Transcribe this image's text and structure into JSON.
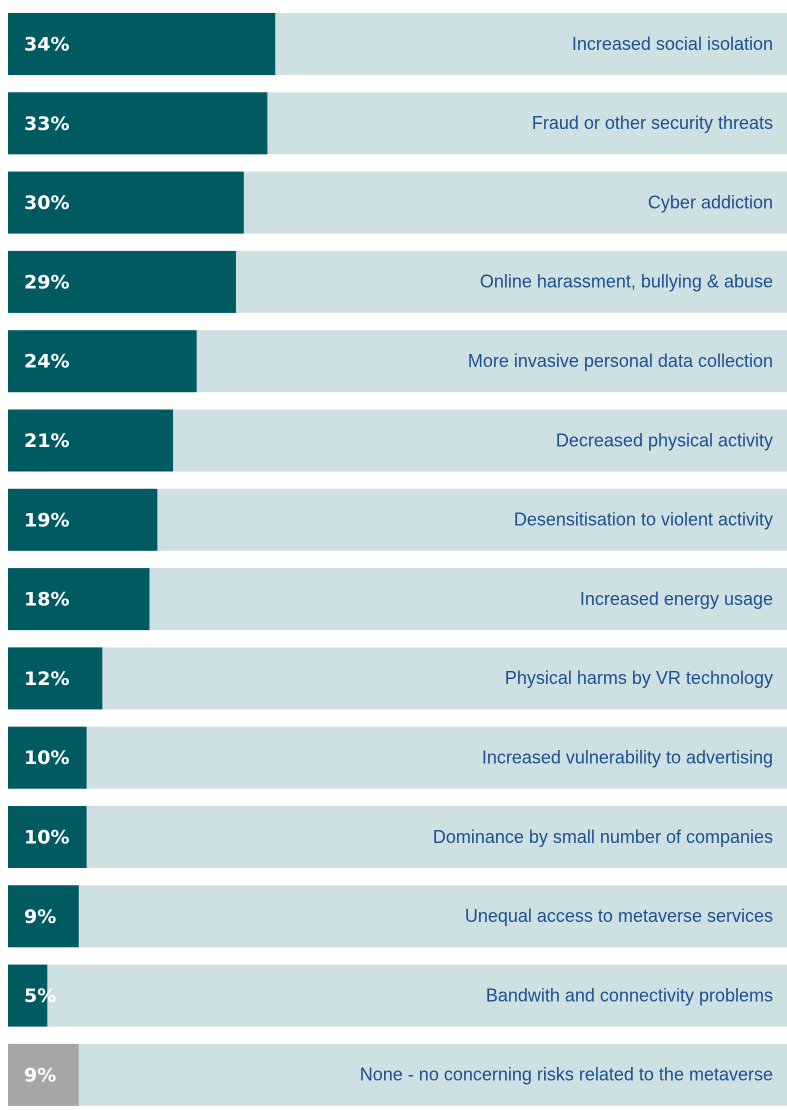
{
  "chart_data": {
    "type": "bar",
    "orientation": "horizontal",
    "categories": [
      "Increased social isolation",
      "Fraud or other security threats",
      "Cyber addiction",
      "Online harassment, bullying & abuse",
      "More invasive personal data collection",
      "Decreased physical activity",
      "Desensitisation to violent activity",
      "Increased energy usage",
      "Physical harms by VR technology",
      "Increased vulnerability to advertising",
      "Dominance by small number of companies",
      "Unequal access to metaverse services",
      "Bandwith and connectivity problems",
      "None - no concerning risks related to the metaverse"
    ],
    "values": [
      34,
      33,
      30,
      29,
      24,
      21,
      19,
      18,
      12,
      10,
      10,
      9,
      5,
      9
    ],
    "value_labels": [
      "34%",
      "33%",
      "30%",
      "29%",
      "24%",
      "21%",
      "19%",
      "18%",
      "12%",
      "10%",
      "10%",
      "9%",
      "5%",
      "9%"
    ],
    "colors": [
      "#005a62",
      "#005a62",
      "#005a62",
      "#005a62",
      "#005a62",
      "#005a62",
      "#005a62",
      "#005a62",
      "#005a62",
      "#005a62",
      "#005a62",
      "#005a62",
      "#005a62",
      "#a6a6a6"
    ],
    "background_color": "#cfe0e3",
    "xlim": [
      0,
      100
    ]
  }
}
